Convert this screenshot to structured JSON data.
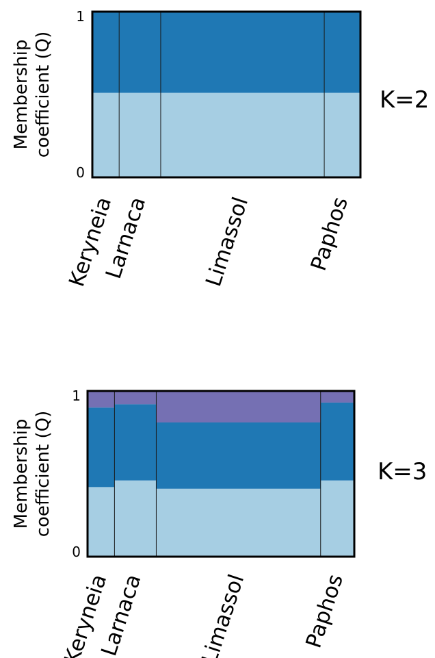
{
  "colors": {
    "cluster_1": "#a6cee3",
    "cluster_2": "#1f78b4",
    "cluster_3": "#7570b3",
    "axis": "#000000",
    "divider": "#1a1a1a"
  },
  "chart_data": [
    {
      "type": "bar",
      "stacked": true,
      "k_label": "K=2",
      "ylabel_line1": "Membership",
      "ylabel_line2": "coefficient (Q)",
      "ylim": [
        0,
        1
      ],
      "ytick_top": "1",
      "ytick_bottom": "0",
      "categories": [
        "Keryneia",
        "Larnaca",
        "Limassol",
        "Paphos"
      ],
      "category_widths": [
        1,
        1.55,
        6.1,
        1.35
      ],
      "series": [
        {
          "color": "#a6cee3",
          "values": [
            0.51,
            0.51,
            0.51,
            0.51
          ]
        },
        {
          "color": "#1f78b4",
          "values": [
            0.49,
            0.49,
            0.49,
            0.49
          ]
        }
      ]
    },
    {
      "type": "bar",
      "stacked": true,
      "k_label": "K=3",
      "ylabel_line1": "Membership",
      "ylabel_line2": "coefficient (Q)",
      "ylim": [
        0,
        1
      ],
      "ytick_top": "1",
      "ytick_bottom": "0",
      "categories": [
        "Keryneia",
        "Larnaca",
        "Limassol",
        "Paphos"
      ],
      "category_widths": [
        1,
        1.55,
        6.1,
        1.25
      ],
      "series": [
        {
          "color": "#a6cee3",
          "values": [
            0.42,
            0.46,
            0.41,
            0.46
          ]
        },
        {
          "color": "#1f78b4",
          "values": [
            0.48,
            0.46,
            0.4,
            0.47
          ]
        },
        {
          "color": "#7570b3",
          "values": [
            0.1,
            0.08,
            0.19,
            0.07
          ]
        }
      ]
    }
  ]
}
